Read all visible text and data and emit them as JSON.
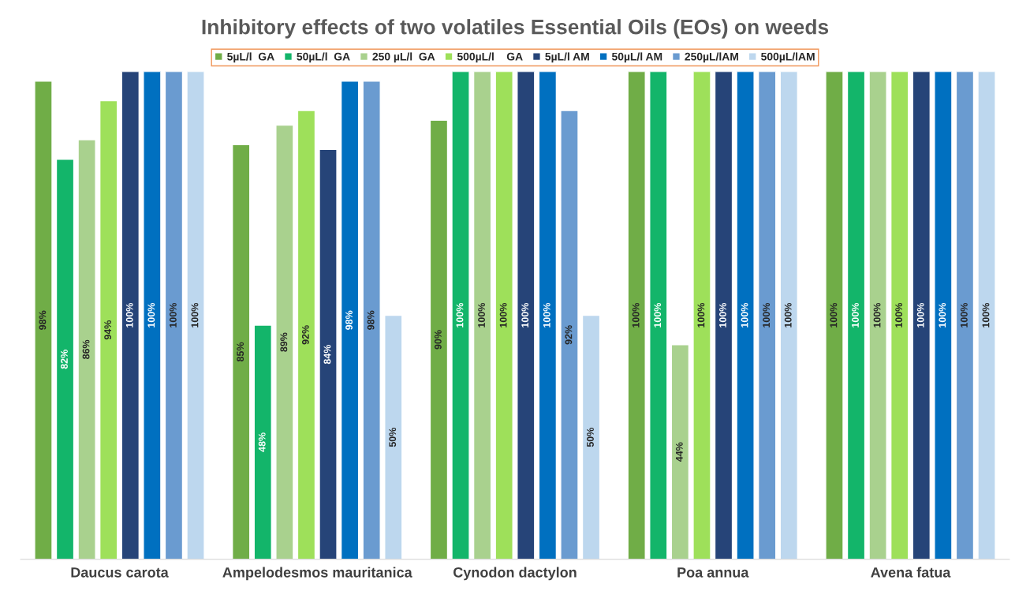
{
  "chart_data": {
    "type": "bar",
    "title": "Inhibitory effects of two volatiles Essential Oils (EOs) on weeds",
    "categories": [
      "Daucus carota",
      "Ampelodesmos mauritanica",
      "Cynodon dactylon",
      "Poa annua",
      "Avena fatua"
    ],
    "ylim": [
      0,
      100
    ],
    "grid": false,
    "legend": "top",
    "tick_labels": "x",
    "series": [
      {
        "name": "5µL/l  GA",
        "color": "#70ad47",
        "values": [
          98,
          85,
          90,
          100,
          100
        ],
        "value_labels": [
          "98%",
          "85%",
          "90%",
          "100%",
          "100%"
        ]
      },
      {
        "name": "50µL/l  GA",
        "color": "#13b56a",
        "values": [
          82,
          48,
          100,
          100,
          100
        ],
        "value_labels": [
          "82%",
          "48%",
          "100%",
          "100%",
          "100%"
        ]
      },
      {
        "name": "250 µL/l  GA",
        "color": "#a9d18e",
        "values": [
          86,
          89,
          100,
          44,
          100
        ],
        "value_labels": [
          "86%",
          "89%",
          "100%",
          "44%",
          "100%"
        ]
      },
      {
        "name": "500µL/l    GA",
        "color": "#9ee05a",
        "values": [
          94,
          92,
          100,
          100,
          100
        ],
        "value_labels": [
          "94%",
          "92%",
          "100%",
          "100%",
          "100%"
        ]
      },
      {
        "name": "5µL/l AM",
        "color": "#264478",
        "values": [
          100,
          84,
          100,
          100,
          100
        ],
        "value_labels": [
          "100%",
          "84%",
          "100%",
          "100%",
          "100%"
        ]
      },
      {
        "name": "50µL/l AM",
        "color": "#0070c0",
        "values": [
          100,
          98,
          100,
          100,
          100
        ],
        "value_labels": [
          "100%",
          "98%",
          "100%",
          "100%",
          "100%"
        ]
      },
      {
        "name": "250µL/lAM",
        "color": "#6a9bd0",
        "values": [
          100,
          98,
          92,
          100,
          100
        ],
        "value_labels": [
          "100%",
          "98%",
          "92%",
          "100%",
          "100%"
        ]
      },
      {
        "name": "500µL/lAM",
        "color": "#bdd7ee",
        "values": [
          100,
          50,
          50,
          100,
          100
        ],
        "value_labels": [
          "100%",
          "50%",
          "50%",
          "100%",
          "100%"
        ]
      }
    ]
  }
}
